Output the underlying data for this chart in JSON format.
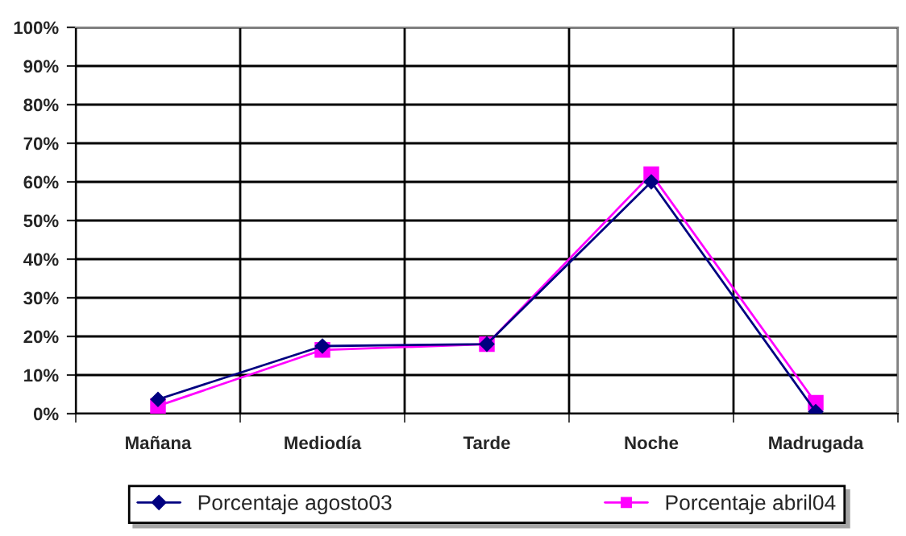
{
  "chart_data": {
    "type": "line",
    "categories": [
      "Mañana",
      "Mediodía",
      "Tarde",
      "Noche",
      "Madrugada"
    ],
    "series": [
      {
        "name": "Porcentaje agosto03",
        "color": "#000080",
        "marker": "diamond",
        "values": [
          3.7,
          17.5,
          18,
          60,
          0.5
        ]
      },
      {
        "name": "Porcentaje abril04",
        "color": "#ff00ff",
        "marker": "square",
        "values": [
          2,
          16.5,
          18,
          62,
          2.8
        ]
      }
    ],
    "ylim": [
      0,
      100
    ],
    "yticks": [
      {
        "value": 0,
        "label": "0%"
      },
      {
        "value": 10,
        "label": "10%"
      },
      {
        "value": 20,
        "label": "20%"
      },
      {
        "value": 30,
        "label": "30%"
      },
      {
        "value": 40,
        "label": "40%"
      },
      {
        "value": 50,
        "label": "50%"
      },
      {
        "value": 60,
        "label": "60%"
      },
      {
        "value": 70,
        "label": "70%"
      },
      {
        "value": 80,
        "label": "80%"
      },
      {
        "value": 90,
        "label": "90%"
      },
      {
        "value": 100,
        "label": "100%"
      }
    ],
    "grid": true,
    "legend": "bottom",
    "line_style": "solid"
  }
}
